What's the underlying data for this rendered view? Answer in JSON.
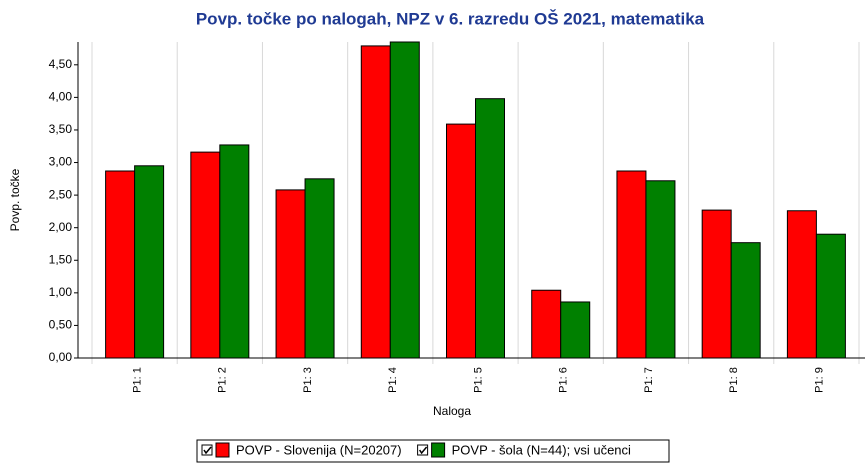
{
  "chart_data": {
    "type": "bar",
    "title": "Povp. točke po nalogah, NPZ v 6. razredu OŠ 2021, matematika",
    "x_label": "Naloga",
    "y_label": "Povp. točke",
    "categories": [
      "P1: 1",
      "P1: 2",
      "P1: 3",
      "P1: 4",
      "P1: 5",
      "P1: 6",
      "P1: 7",
      "P1: 8",
      "P1: 9"
    ],
    "series": [
      {
        "name": "POVP - Slovenija (N=20207)",
        "color": "#ff0000",
        "values": [
          2.87,
          3.16,
          2.58,
          4.79,
          3.59,
          1.04,
          2.87,
          2.27,
          2.26
        ]
      },
      {
        "name": "POVP - šola (N=44); vsi učenci",
        "color": "#008000",
        "values": [
          2.95,
          3.27,
          2.75,
          4.85,
          3.98,
          0.86,
          2.72,
          1.77,
          1.9
        ]
      }
    ],
    "ylim": [
      0,
      4.85
    ],
    "yticks": [
      {
        "value": 0,
        "label": "0,00"
      },
      {
        "value": 0.5,
        "label": "0,50"
      },
      {
        "value": 1,
        "label": "1,00"
      },
      {
        "value": 1.5,
        "label": "1,50"
      },
      {
        "value": 2,
        "label": "2,00"
      },
      {
        "value": 2.5,
        "label": "2,50"
      },
      {
        "value": 3,
        "label": "3,00"
      },
      {
        "value": 3.5,
        "label": "3,50"
      },
      {
        "value": 4,
        "label": "4,00"
      },
      {
        "value": 4.5,
        "label": "4,50"
      }
    ],
    "grid": false,
    "legend": "bottom"
  }
}
